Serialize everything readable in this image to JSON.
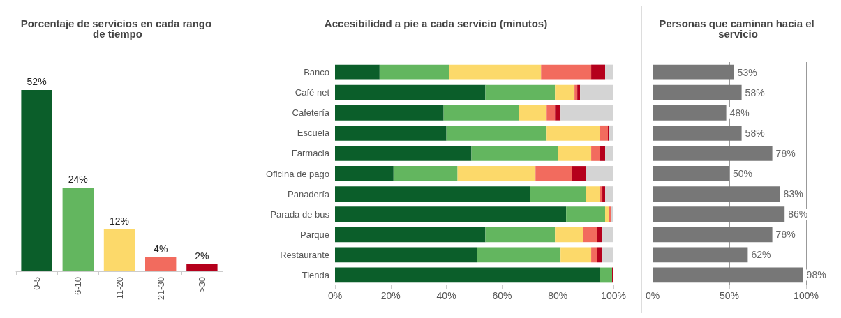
{
  "chart_data": [
    {
      "type": "bar",
      "title": "Porcentaje de servicios en cada rango de tiempo",
      "categories": [
        "0-5",
        "6-10",
        "11-20",
        "21-30",
        ">30"
      ],
      "values": [
        52,
        24,
        12,
        4,
        2
      ],
      "colors": [
        "#0b5e2a",
        "#63b65f",
        "#fcd96a",
        "#f26b5e",
        "#b5001c"
      ],
      "value_labels": [
        "52%",
        "24%",
        "12%",
        "4%",
        "2%"
      ]
    },
    {
      "type": "bar",
      "title": "Accesibilidad a pie a cada servicio (minutos)",
      "orientation": "horizontal",
      "stacked": true,
      "categories": [
        "Banco",
        "Café net",
        "Cafetería",
        "Escuela",
        "Farmacia",
        "Oficina de pago",
        "Panadería",
        "Parada de bus",
        "Parque",
        "Restaurante",
        "Tienda"
      ],
      "xlim": [
        0,
        100
      ],
      "xticks": [
        {
          "value": 0,
          "label": "0%"
        },
        {
          "value": 20,
          "label": "20%"
        },
        {
          "value": 40,
          "label": "40%"
        },
        {
          "value": 60,
          "label": "60%"
        },
        {
          "value": 80,
          "label": "80%"
        },
        {
          "value": 100,
          "label": "100%"
        }
      ],
      "series": [
        {
          "color": "#0b5e2a",
          "values": [
            16,
            54,
            39,
            40,
            49,
            21,
            70,
            83,
            54,
            51,
            95
          ]
        },
        {
          "color": "#63b65f",
          "values": [
            25,
            25,
            27,
            36,
            31,
            23,
            20,
            14,
            25,
            30,
            4.5
          ]
        },
        {
          "color": "#fcd96a",
          "values": [
            33,
            7,
            10,
            19,
            12,
            28,
            5,
            1.5,
            10,
            11,
            0
          ]
        },
        {
          "color": "#f26b5e",
          "values": [
            18,
            1,
            3,
            3,
            3,
            13,
            1,
            0.5,
            5,
            2,
            0
          ]
        },
        {
          "color": "#b5001c",
          "values": [
            5,
            1,
            2,
            0.5,
            2,
            5,
            1,
            0,
            2,
            2,
            0.5
          ]
        },
        {
          "color": "#d4d4d4",
          "values": [
            3,
            12,
            19,
            1.5,
            3,
            10,
            3,
            1,
            4,
            4,
            0
          ]
        }
      ]
    },
    {
      "type": "bar",
      "title": "Personas que caminan hacia el servicio",
      "orientation": "horizontal",
      "categories": [
        null,
        null,
        null,
        null,
        null,
        null,
        null,
        null,
        null,
        null,
        null
      ],
      "values": [
        53,
        58,
        48,
        58,
        78,
        50,
        83,
        86,
        78,
        62,
        98
      ],
      "color": "#777777",
      "value_labels": [
        "53%",
        "58%",
        "48%",
        "58%",
        "78%",
        "50%",
        "83%",
        "86%",
        "78%",
        "62%",
        "98%"
      ],
      "xlim": [
        0,
        100
      ],
      "xticks": [
        {
          "value": 0,
          "label": "0%"
        },
        {
          "value": 50,
          "label": "50%"
        },
        {
          "value": 100,
          "label": "100%"
        }
      ],
      "grid": "x"
    }
  ]
}
